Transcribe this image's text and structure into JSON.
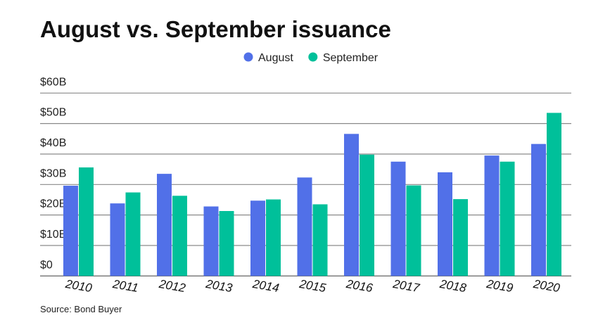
{
  "chart_data": {
    "type": "bar",
    "title": "August vs. September issuance",
    "xlabel": "",
    "ylabel": "",
    "ylim": [
      0,
      60
    ],
    "yticks": [
      0,
      10,
      20,
      30,
      40,
      50,
      60
    ],
    "ytick_labels": [
      "$0",
      "$10B",
      "$20B",
      "$30B",
      "$40B",
      "$50B",
      "$60B"
    ],
    "categories": [
      "2010",
      "2011",
      "2012",
      "2013",
      "2014",
      "2015",
      "2016",
      "2017",
      "2018",
      "2019",
      "2020"
    ],
    "series": [
      {
        "name": "August",
        "color": "#5170e8",
        "values": [
          29.6,
          23.8,
          33.5,
          22.8,
          24.7,
          32.3,
          46.6,
          37.5,
          34.0,
          39.5,
          43.3
        ]
      },
      {
        "name": "September",
        "color": "#00c09a",
        "values": [
          35.6,
          27.4,
          26.3,
          21.3,
          25.1,
          23.5,
          39.8,
          29.7,
          25.2,
          37.5,
          53.5
        ]
      }
    ],
    "legend_position": "top-center",
    "grid": true,
    "source": "Source: Bond Buyer"
  }
}
